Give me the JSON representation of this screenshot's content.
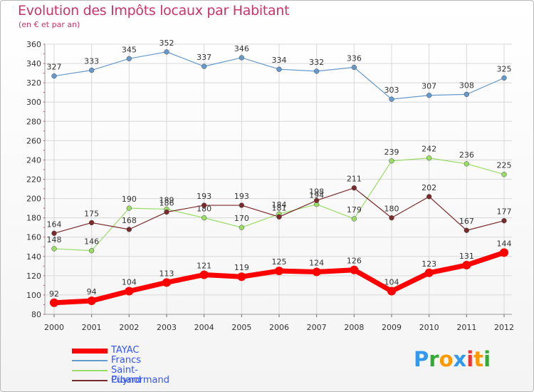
{
  "chart_data": {
    "type": "line",
    "title": "Evolution des Impôts locaux par Habitant",
    "subtitle": "(en € et par an)",
    "xlabel": "",
    "ylabel": "",
    "ylim": [
      80,
      360
    ],
    "yticks": [
      80,
      100,
      120,
      140,
      160,
      180,
      200,
      220,
      240,
      260,
      280,
      300,
      320,
      340,
      360
    ],
    "grid": true,
    "legend_position": "bottom-left",
    "x": [
      "2000",
      "2001",
      "2002",
      "2003",
      "2004",
      "2005",
      "2006",
      "2007",
      "2008",
      "2009",
      "2010",
      "2011",
      "2012"
    ],
    "series": [
      {
        "name": "TAYAC",
        "color": "#ff0000",
        "values": [
          92,
          94,
          104,
          113,
          121,
          119,
          125,
          124,
          126,
          104,
          123,
          131,
          144
        ]
      },
      {
        "name": "Francs",
        "color": "#6699cc",
        "values": [
          327,
          333,
          345,
          352,
          337,
          346,
          334,
          332,
          336,
          303,
          307,
          308,
          325
        ]
      },
      {
        "name": "Saint-Cibard",
        "color": "#99dd66",
        "values": [
          148,
          146,
          190,
          189,
          180,
          170,
          184,
          194,
          179,
          239,
          242,
          236,
          225
        ]
      },
      {
        "name": "Puynormand",
        "color": "#7a2a2a",
        "values": [
          164,
          175,
          168,
          186,
          193,
          193,
          181,
          198,
          211,
          180,
          202,
          167,
          177
        ]
      }
    ]
  },
  "logo": {
    "letters": [
      "P",
      "r",
      "o",
      "x",
      "i",
      "t",
      "i"
    ],
    "colors": [
      "#3399ee",
      "#33aa33",
      "#ff9900",
      "#3399ee",
      "#ee3333",
      "#ff9900",
      "#33aa33"
    ]
  }
}
